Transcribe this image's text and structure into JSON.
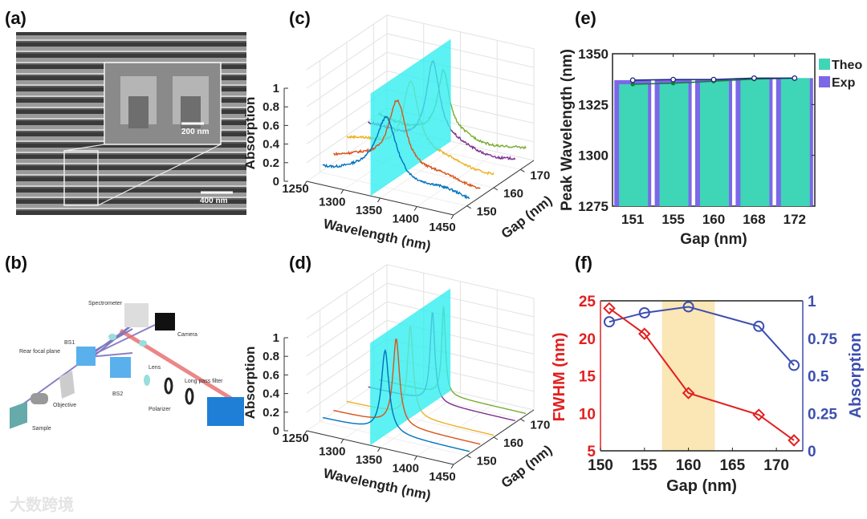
{
  "panel_labels": {
    "a": "(a)",
    "b": "(b)",
    "c": "(c)",
    "d": "(d)",
    "e": "(e)",
    "f": "(f)"
  },
  "sem": {
    "inset_scale": "200 nm",
    "main_scale": "400 nm"
  },
  "setup": {
    "labels": [
      "Spectrometer",
      "Camera",
      "BS1",
      "Rear focal plane",
      "Lens",
      "Long pass filter",
      "BS2",
      "Objective",
      "Polarizer",
      "Sample"
    ]
  },
  "watermark": "大数跨境",
  "colors": {
    "theo": "#3ed6b6",
    "exp": "#7b68e8",
    "fwhm": "#e02020",
    "absorption": "#3d4fb0",
    "highlight": "#fbe6b5",
    "plane": "#33eef0",
    "series": [
      "#0072BD",
      "#D95319",
      "#EDB120",
      "#7E2F8E",
      "#77AC30"
    ]
  },
  "chart_data": [
    {
      "id": "c",
      "type": "line",
      "title": "",
      "xlabel": "Wavelength (nm)",
      "ylabel": "Gap (nm)",
      "zlabel": "Absorption",
      "xticks": [
        "1250",
        "1300",
        "1350",
        "1400",
        "1450"
      ],
      "yticks": [
        "150",
        "160",
        "170"
      ],
      "zticks": [
        "0",
        "0.2",
        "0.4",
        "0.6",
        "0.8",
        "1"
      ],
      "xlim": [
        1250,
        1450
      ],
      "ylim": [
        145,
        175
      ],
      "zlim": [
        0,
        1
      ],
      "series": [
        {
          "gap": 151,
          "peak_wavelength": 1337,
          "peak": 0.73,
          "baseline": 0.06
        },
        {
          "gap": 155,
          "peak_wavelength": 1337,
          "peak": 0.86,
          "baseline": 0.1
        },
        {
          "gap": 160,
          "peak_wavelength": 1337,
          "peak": 0.97,
          "baseline": 0.16
        },
        {
          "gap": 168,
          "peak_wavelength": 1338,
          "peak": 1.0,
          "baseline": 0.14
        },
        {
          "gap": 172,
          "peak_wavelength": 1338,
          "peak": 0.8,
          "baseline": 0.16
        }
      ],
      "noisy": true
    },
    {
      "id": "d",
      "type": "line",
      "title": "",
      "xlabel": "Wavelength (nm)",
      "ylabel": "Gap (nm)",
      "zlabel": "Absorption",
      "xticks": [
        "1250",
        "1300",
        "1350",
        "1400",
        "1450"
      ],
      "yticks": [
        "150",
        "160",
        "170"
      ],
      "zticks": [
        "0",
        "0.2",
        "0.4",
        "0.6",
        "0.8",
        "1"
      ],
      "xlim": [
        1250,
        1450
      ],
      "ylim": [
        145,
        175
      ],
      "zlim": [
        0,
        1
      ],
      "series": [
        {
          "gap": 151,
          "peak_wavelength": 1335,
          "peak": 0.9,
          "baseline": 0.02
        },
        {
          "gap": 155,
          "peak_wavelength": 1335.5,
          "peak": 0.95,
          "baseline": 0.02
        },
        {
          "gap": 160,
          "peak_wavelength": 1336.5,
          "peak": 0.99,
          "baseline": 0.02
        },
        {
          "gap": 168,
          "peak_wavelength": 1337.5,
          "peak": 0.99,
          "baseline": 0.02
        },
        {
          "gap": 172,
          "peak_wavelength": 1338,
          "peak": 0.97,
          "baseline": 0.02
        }
      ],
      "noisy": false
    },
    {
      "id": "e",
      "type": "bar",
      "xlabel": "Gap (nm)",
      "ylabel": "Peak Wavelength (nm)",
      "categories": [
        "151",
        "155",
        "160",
        "168",
        "172"
      ],
      "series": [
        {
          "name": "Theo",
          "values": [
            1335,
            1335.5,
            1336.5,
            1337.5,
            1338
          ]
        },
        {
          "name": "Exp",
          "values": [
            1337,
            1337.3,
            1337.3,
            1338,
            1338
          ]
        }
      ],
      "ylim": [
        1275,
        1350
      ],
      "yticks": [
        "1275",
        "1300",
        "1325",
        "1350"
      ],
      "legend": "right"
    },
    {
      "id": "f",
      "type": "line",
      "xlabel": "Gap (nm)",
      "ylabel": "FWHM (nm)",
      "y2label": "Absorption",
      "x": [
        151,
        155,
        160,
        168,
        172
      ],
      "series": [
        {
          "name": "FWHM (nm)",
          "axis": "left",
          "values": [
            24,
            20.6,
            12.7,
            9.8,
            6.4
          ]
        },
        {
          "name": "Absorption",
          "axis": "right",
          "values": [
            0.86,
            0.92,
            0.96,
            0.83,
            0.57
          ]
        }
      ],
      "xlim": [
        150,
        173
      ],
      "ylim": [
        5,
        25
      ],
      "y2lim": [
        0,
        1
      ],
      "xticks": [
        "150",
        "155",
        "160",
        "165",
        "170"
      ],
      "yticks": [
        "5",
        "10",
        "15",
        "20",
        "25"
      ],
      "y2ticks": [
        "0",
        "0.25",
        "0.5",
        "0.75",
        "1"
      ],
      "highlight_range": [
        157,
        163
      ]
    }
  ]
}
